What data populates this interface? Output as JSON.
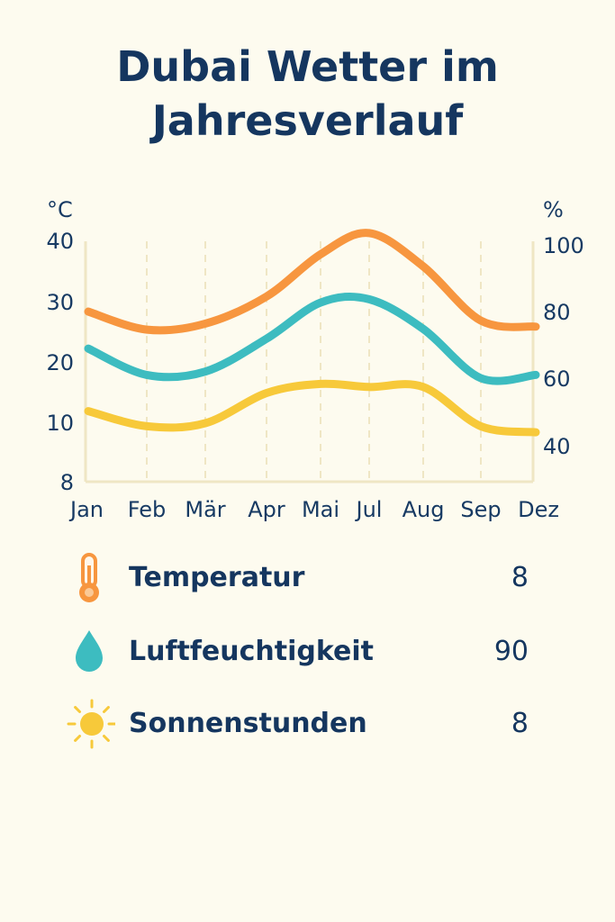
{
  "title_line1": "Dubai Wetter im",
  "title_line2": "Jahresverlauf",
  "chart_data": {
    "type": "line",
    "title": "Dubai Wetter im Jahresverlauf",
    "categories": [
      "Jan",
      "Feb",
      "Mär",
      "Apr",
      "Mai",
      "Jul",
      "Aug",
      "Sep",
      "Dez"
    ],
    "left_axis": {
      "unit": "°C",
      "ticks": [
        "40",
        "30",
        "20",
        "10",
        "8"
      ]
    },
    "right_axis": {
      "unit": "%",
      "ticks": [
        "100",
        "80",
        "60",
        "40"
      ]
    },
    "grid": "vertical dashed",
    "series": [
      {
        "name": "Temperatur",
        "axis": "left",
        "color": "#f7963f",
        "values": [
          28.5,
          25.5,
          26.5,
          31,
          38,
          41.5,
          36,
          27,
          26
        ]
      },
      {
        "name": "Luftfeuchtigkeit",
        "axis": "right",
        "color": "#3dbcc0",
        "values": [
          69,
          61,
          62,
          72,
          83,
          84,
          75,
          60,
          61
        ]
      },
      {
        "name": "Sonnenstunden",
        "axis": "left",
        "color": "#f7c93a",
        "values": [
          12,
          9.5,
          10,
          15,
          16.5,
          16,
          16,
          9.5,
          8.5
        ]
      }
    ]
  },
  "legend": [
    {
      "label": "Temperatur",
      "value": "8",
      "icon": "thermometer-icon",
      "color": "#f7963f"
    },
    {
      "label": "Luftfeuchtigkeit",
      "value": "90",
      "icon": "droplet-icon",
      "color": "#3dbcc0"
    },
    {
      "label": "Sonnenstunden",
      "value": "8",
      "icon": "sun-icon",
      "color": "#f7c93a"
    }
  ]
}
